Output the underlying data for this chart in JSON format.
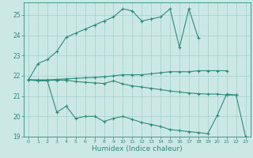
{
  "xlabel": "Humidex (Indice chaleur)",
  "x": [
    0,
    1,
    2,
    3,
    4,
    5,
    6,
    7,
    8,
    9,
    10,
    11,
    12,
    13,
    14,
    15,
    16,
    17,
    18,
    19,
    20,
    21,
    22,
    23
  ],
  "line1": [
    21.8,
    22.6,
    22.8,
    23.2,
    23.9,
    24.1,
    24.3,
    24.5,
    24.7,
    24.9,
    25.3,
    25.2,
    24.7,
    24.8,
    24.9,
    25.3,
    23.4,
    25.3,
    23.85,
    null,
    null,
    null,
    null,
    null
  ],
  "line2": [
    21.8,
    21.8,
    21.8,
    21.82,
    21.85,
    21.87,
    21.9,
    21.92,
    21.95,
    22.0,
    22.05,
    22.05,
    22.05,
    22.1,
    22.15,
    22.2,
    22.2,
    22.2,
    22.25,
    22.25,
    22.25,
    22.25,
    null,
    null
  ],
  "line3": [
    21.8,
    21.75,
    21.75,
    20.2,
    20.5,
    19.9,
    20.0,
    20.0,
    19.75,
    19.9,
    20.0,
    19.85,
    19.7,
    19.6,
    19.5,
    19.35,
    19.3,
    19.25,
    19.2,
    19.15,
    20.05,
    21.1,
    21.05,
    19.0
  ],
  "line4": [
    21.8,
    21.78,
    21.78,
    21.78,
    21.78,
    21.72,
    21.68,
    21.65,
    21.62,
    21.75,
    21.6,
    21.5,
    21.45,
    21.38,
    21.32,
    21.25,
    21.2,
    21.15,
    21.12,
    21.1,
    21.1,
    21.05,
    21.05,
    null
  ],
  "color": "#2e8b7a",
  "bg_color": "#cce8e4",
  "grid_color": "#a8d4cf",
  "ylim": [
    19,
    25.6
  ],
  "yticks": [
    19,
    20,
    21,
    22,
    23,
    24,
    25
  ],
  "xlim": [
    -0.5,
    23.5
  ],
  "xticks": [
    0,
    1,
    2,
    3,
    4,
    5,
    6,
    7,
    8,
    9,
    10,
    11,
    12,
    13,
    14,
    15,
    16,
    17,
    18,
    19,
    20,
    21,
    22,
    23
  ]
}
